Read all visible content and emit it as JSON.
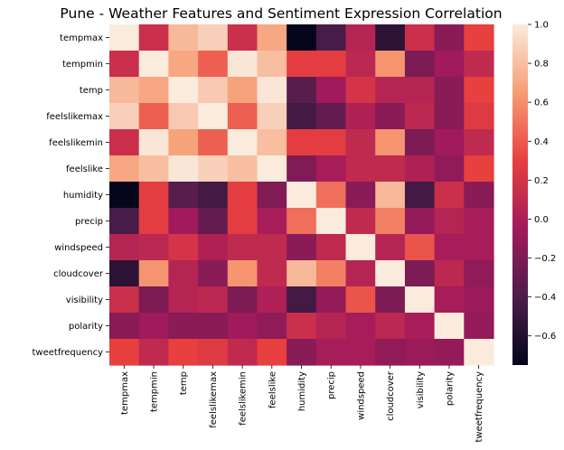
{
  "chart_data": {
    "type": "heatmap",
    "title": "Pune -  Weather Features and Sentiment Expression Correlation",
    "labels": [
      "tempmax",
      "tempmin",
      "temp",
      "feelslikemax",
      "feelslikemin",
      "feelslike",
      "humidity",
      "precip",
      "windspeed",
      "cloudcover",
      "visibility",
      "polarity",
      "tweetfrequency"
    ],
    "values": [
      [
        1.0,
        0.15,
        0.78,
        0.88,
        0.15,
        0.7,
        -0.74,
        -0.42,
        0.05,
        -0.55,
        0.15,
        -0.15,
        0.3
      ],
      [
        0.15,
        1.0,
        0.7,
        0.42,
        0.98,
        0.8,
        0.28,
        0.28,
        0.08,
        0.62,
        -0.2,
        -0.05,
        0.1
      ],
      [
        0.78,
        0.7,
        1.0,
        0.85,
        0.68,
        0.98,
        -0.35,
        -0.05,
        0.2,
        0.05,
        0.05,
        -0.15,
        0.3
      ],
      [
        0.88,
        0.42,
        0.85,
        1.0,
        0.42,
        0.88,
        -0.45,
        -0.3,
        0.02,
        -0.15,
        0.08,
        -0.15,
        0.25
      ],
      [
        0.15,
        0.98,
        0.68,
        0.42,
        1.0,
        0.8,
        0.28,
        0.28,
        0.1,
        0.62,
        -0.2,
        -0.05,
        0.1
      ],
      [
        0.7,
        0.8,
        0.98,
        0.88,
        0.8,
        1.0,
        -0.18,
        -0.02,
        0.1,
        0.1,
        0.02,
        -0.12,
        0.3
      ],
      [
        -0.74,
        0.28,
        -0.35,
        -0.45,
        0.28,
        -0.18,
        1.0,
        0.48,
        -0.15,
        0.78,
        -0.45,
        0.15,
        -0.15
      ],
      [
        -0.42,
        0.28,
        -0.05,
        -0.3,
        0.28,
        -0.02,
        0.48,
        1.0,
        0.1,
        0.55,
        -0.1,
        0.05,
        -0.02
      ],
      [
        0.05,
        0.08,
        0.2,
        0.02,
        0.1,
        0.1,
        -0.15,
        0.1,
        1.0,
        0.05,
        0.38,
        -0.02,
        -0.02
      ],
      [
        -0.55,
        0.62,
        0.05,
        -0.15,
        0.62,
        0.1,
        0.78,
        0.55,
        0.05,
        1.0,
        -0.2,
        0.08,
        -0.12
      ],
      [
        0.15,
        -0.2,
        0.05,
        0.08,
        -0.2,
        0.02,
        -0.45,
        -0.1,
        0.38,
        -0.2,
        1.0,
        -0.02,
        -0.08
      ],
      [
        -0.15,
        -0.05,
        -0.15,
        -0.15,
        -0.05,
        -0.12,
        0.15,
        0.05,
        -0.02,
        0.08,
        -0.02,
        1.0,
        -0.1
      ],
      [
        0.3,
        0.1,
        0.3,
        0.25,
        0.1,
        0.3,
        -0.15,
        -0.02,
        -0.02,
        -0.12,
        -0.08,
        -0.1,
        1.0
      ]
    ],
    "colorbar": {
      "min": -0.75,
      "max": 1.0,
      "ticks": [
        1.0,
        0.8,
        0.6,
        0.4,
        0.2,
        0.0,
        -0.2,
        -0.4,
        -0.6
      ],
      "tick_labels": [
        "1.0",
        "0.8",
        "0.6",
        "0.4",
        "0.2",
        "0.0",
        "−0.2",
        "−0.4",
        "−0.6"
      ],
      "colormap": "rocket",
      "stops": [
        "#03051a",
        "#4c1d4b",
        "#a11a5b",
        "#e83f3f",
        "#f69c73",
        "#faebdd"
      ]
    }
  }
}
